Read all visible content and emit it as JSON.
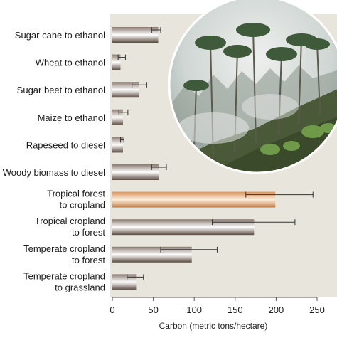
{
  "chart_data": {
    "type": "bar",
    "orientation": "horizontal",
    "categories": [
      [
        "Sugar cane to ethanol"
      ],
      [
        "Wheat to ethanol"
      ],
      [
        "Sugar beet to ethanol"
      ],
      [
        "Maize to ethanol"
      ],
      [
        "Rapeseed to diesel"
      ],
      [
        "Woody biomass to diesel"
      ],
      [
        "Tropical forest",
        "to cropland"
      ],
      [
        "Tropical cropland",
        "to forest"
      ],
      [
        "Temperate cropland",
        "to forest"
      ],
      [
        "Temperate cropland",
        "to grassland"
      ]
    ],
    "values": [
      56,
      10,
      33,
      13,
      13,
      57,
      199,
      173,
      97,
      29
    ],
    "error_low": [
      48,
      7,
      24,
      8,
      10,
      48,
      163,
      122,
      59,
      18
    ],
    "error_high": [
      59,
      16,
      42,
      19,
      14,
      66,
      245,
      223,
      128,
      38
    ],
    "highlight_index": 6,
    "xlabel": "Carbon (metric tons/hectare)",
    "ylabel": "",
    "xlim": [
      0,
      250
    ],
    "xticks": [
      0,
      50,
      100,
      150,
      200,
      250
    ],
    "grid": false,
    "colors": {
      "panel": "#e8e6dc",
      "bar_dark": "#6a5a50",
      "bar_light": "#ffffff",
      "highlight_dark": "#c98652",
      "highlight_light": "#fbe9d6",
      "error": "#333333",
      "axis": "#555555"
    }
  },
  "photo": {
    "description_icon": "tropical-forest-photo"
  }
}
